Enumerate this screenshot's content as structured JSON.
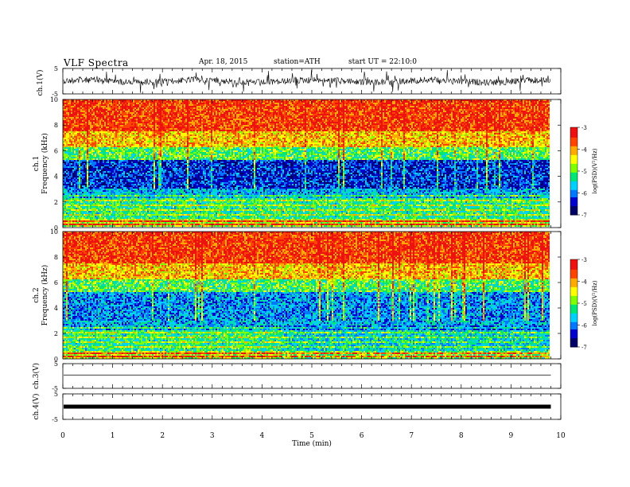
{
  "header": {
    "title": "VLF  Spectra",
    "date": "Apr. 18, 2015",
    "station": "station=ATH",
    "start": "start  UT  =   22:10:0"
  },
  "colors": {
    "colormap": [
      "#000066",
      "#0000cc",
      "#0077ff",
      "#00d0ff",
      "#00e676",
      "#7fff00",
      "#ffff00",
      "#ffaa00",
      "#ff4400",
      "#ee1111",
      "#ffffff"
    ]
  },
  "chart_data": [
    {
      "type": "line",
      "panel": "ch1-waveform",
      "ylabel": "ch.1(V)",
      "yticks": [
        "5",
        "-5"
      ],
      "ylim": [
        -5,
        5
      ],
      "description_values": {
        "baseline_mean": 0,
        "noise_amplitude": 1.5
      },
      "xlim": [
        0,
        10
      ]
    },
    {
      "type": "heatmap",
      "panel": "ch1-spectrogram",
      "ylabel": "ch.1\nFrequency  (kHz)",
      "yticks": [
        "0",
        "2",
        "4",
        "6",
        "8",
        "10"
      ],
      "ylim": [
        0,
        10
      ],
      "xlim": [
        0,
        10
      ],
      "data_end_min": 9.8,
      "colorbar": {
        "label": "log(PSD)(V²/Hz)",
        "ticks": [
          "-3",
          "-4",
          "-5",
          "-6",
          "-7"
        ],
        "range": [
          -7,
          -3
        ]
      }
    },
    {
      "type": "heatmap",
      "panel": "ch2-spectrogram",
      "ylabel": "ch.2\nFrequency  (kHz)",
      "yticks": [
        "0",
        "2",
        "4",
        "6",
        "8",
        "10"
      ],
      "ylim": [
        0,
        10
      ],
      "xlim": [
        0,
        10
      ],
      "data_end_min": 9.8,
      "colorbar": {
        "label": "log(PSD)(V²/Hz)",
        "ticks": [
          "-3",
          "-4",
          "-5",
          "-6",
          "-7"
        ],
        "range": [
          -7,
          -3
        ]
      }
    },
    {
      "type": "line",
      "panel": "ch3-waveform",
      "ylabel": "ch.3(V)",
      "yticks": [
        "5",
        "-5"
      ],
      "ylim": [
        -5,
        5
      ],
      "xlim": [
        0,
        10
      ]
    },
    {
      "type": "line",
      "panel": "ch4-waveform",
      "ylabel": "ch.4(V)",
      "yticks": [
        "5",
        "-5"
      ],
      "ylim": [
        -5,
        5
      ],
      "xlim": [
        0,
        10
      ]
    }
  ],
  "xaxis": {
    "label": "Time  (min)",
    "ticks": [
      "0",
      "1",
      "2",
      "3",
      "4",
      "5",
      "6",
      "7",
      "8",
      "9",
      "10"
    ]
  }
}
